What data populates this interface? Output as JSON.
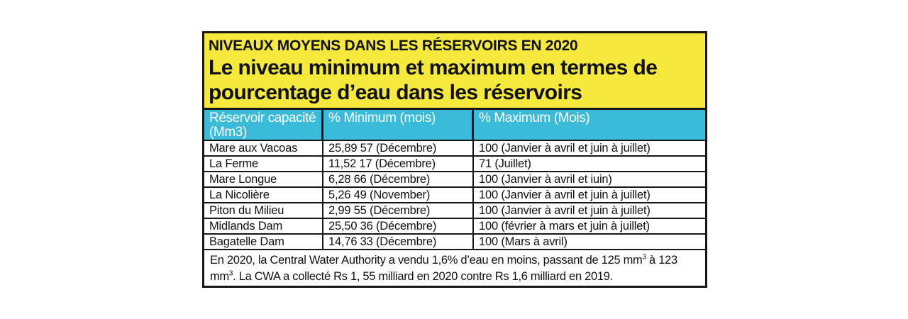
{
  "chart_data": {
    "type": "table",
    "kicker": "NIVEAUX MOYENS DANS LES RÉSERVOIRS EN 2020",
    "title": "Le niveau minimum et maximum en termes de pourcentage d’eau dans les réservoirs",
    "title_lines": [
      "Le niveau minimum et maximum en termes de",
      "pourcentage d’eau dans les réservoirs"
    ],
    "columns": [
      "Réservoir capacité\n(Mm3)",
      "% Minimum (mois)",
      "% Maximum (Mois)"
    ],
    "rows": [
      [
        "Mare aux Vacoas",
        "25,89 57 (Décembre)",
        "100 (Janvier à avril et juin à juillet)"
      ],
      [
        "La Ferme",
        "11,52 17 (Décembre)",
        "71 (Juillet)"
      ],
      [
        "Mare Longue",
        "6,28 66 (Décembre)",
        "100 (Janvier à avril et iuin)"
      ],
      [
        "La Nicolière",
        "5,26 49 (November)",
        "100 (Janvier à avril et juin à juillet)"
      ],
      [
        "Piton du Milieu",
        "2,99 55 (Décembre)",
        "100 (Janvier à avril et juin à juillet)"
      ],
      [
        "Midlands Dam",
        "25,50 36 (Décembre)",
        "100 (février à mars et juin à juillet)"
      ],
      [
        "Bagatelle Dam",
        "14,76 33 (Décembre)",
        "100 (Mars à avril)"
      ]
    ],
    "note_parts": [
      "En 2020, la Central Water Authority a vendu 1,6% d’eau en moins, passant de 125 mm",
      "3",
      " à 123 mm",
      "3",
      ". La CWA a collecté Rs 1, 55 milliard en 2020 contre Rs 1,6 milliard en 2019."
    ],
    "layout_hints": "headline box yellow, column header row cyan with white text, 7 white data rows, footnote row spans all columns"
  },
  "colors": {
    "headline_bg": "#F5E93E",
    "table_header_bg": "#3BBBDA",
    "table_header_text": "#FFFFFF",
    "border": "#161616",
    "text": "#111111",
    "page_bg": "#FFFFFF"
  }
}
